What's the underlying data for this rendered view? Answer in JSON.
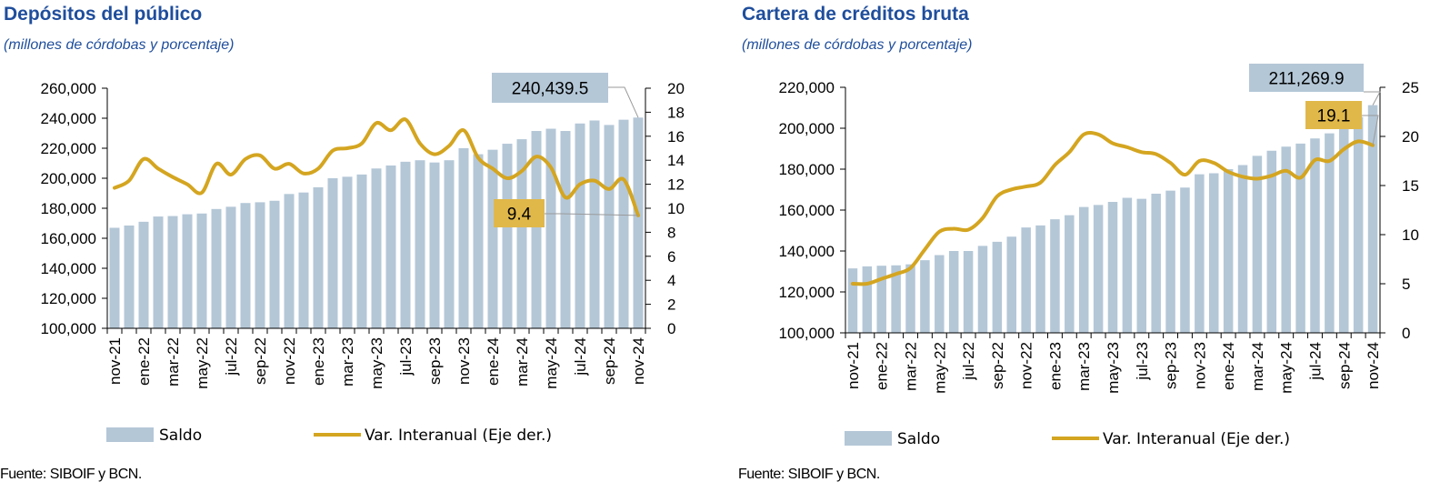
{
  "charts": [
    {
      "title": "Depósitos del público",
      "subtitle": "(millones de córdobas y porcentaje)",
      "source": "Fuente: SIBOIF y BCN.",
      "legend": {
        "bar": "Saldo",
        "line": "Var. Interanual (Eje der.)"
      },
      "colors": {
        "bar": "#b4c7d7",
        "line": "#d4a520",
        "callout_bar": "#b4c7d7",
        "callout_line": "#e0b84a",
        "title": "#1f4e9c"
      },
      "chart_data": {
        "type": "bar+line",
        "categories": [
          "nov-21",
          "dic-21",
          "ene-22",
          "feb-22",
          "mar-22",
          "abr-22",
          "may-22",
          "jun-22",
          "jul-22",
          "ago-22",
          "sep-22",
          "oct-22",
          "nov-22",
          "dic-22",
          "ene-23",
          "feb-23",
          "mar-23",
          "abr-23",
          "may-23",
          "jun-23",
          "jul-23",
          "ago-23",
          "sep-23",
          "oct-23",
          "nov-23",
          "dic-23",
          "ene-24",
          "feb-24",
          "mar-24",
          "abr-24",
          "may-24",
          "jun-24",
          "jul-24",
          "ago-24",
          "sep-24",
          "oct-24",
          "nov-24"
        ],
        "x_tick_labels": [
          "nov-21",
          "ene-22",
          "mar-22",
          "may-22",
          "jul-22",
          "sep-22",
          "nov-22",
          "ene-23",
          "mar-23",
          "may-23",
          "jul-23",
          "sep-23",
          "nov-23",
          "ene-24",
          "mar-24",
          "may-24",
          "jul-24",
          "sep-24",
          "nov-24"
        ],
        "series": [
          {
            "name": "Saldo",
            "type": "bar",
            "axis": "left",
            "values": [
              167000,
              168500,
              171000,
              174500,
              174800,
              176000,
              176500,
              179500,
              181000,
              183500,
              184000,
              185000,
              189500,
              190500,
              194000,
              200000,
              201000,
              202500,
              206500,
              208500,
              211000,
              212000,
              210500,
              212000,
              220000,
              216000,
              219000,
              223000,
              226000,
              231500,
              233000,
              231500,
              236500,
              238500,
              235500,
              239000,
              240439.5
            ]
          },
          {
            "name": "Var. Interanual (Eje der.)",
            "type": "line",
            "axis": "right",
            "values": [
              11.7,
              12.3,
              14.1,
              13.3,
              12.6,
              12.0,
              11.3,
              13.7,
              12.8,
              14.1,
              14.4,
              13.3,
              13.7,
              12.9,
              13.3,
              14.8,
              15.0,
              15.4,
              17.1,
              16.5,
              17.4,
              15.4,
              14.5,
              15.2,
              16.5,
              14.2,
              13.3,
              12.5,
              13.1,
              14.3,
              13.4,
              10.9,
              12.0,
              12.3,
              11.6,
              12.4,
              9.4
            ]
          }
        ],
        "y_left": {
          "min": 100000,
          "max": 260000,
          "step": 20000,
          "tick_labels": [
            "100,000",
            "120,000",
            "140,000",
            "160,000",
            "180,000",
            "200,000",
            "220,000",
            "240,000",
            "260,000"
          ]
        },
        "y_right": {
          "min": 0,
          "max": 20,
          "step": 2,
          "tick_labels": [
            "0",
            "2",
            "4",
            "6",
            "8",
            "10",
            "12",
            "14",
            "16",
            "18",
            "20"
          ]
        },
        "annotations": [
          {
            "text": "240,439.5",
            "target_series": "Saldo",
            "target_index": 36
          },
          {
            "text": "9.4",
            "target_series": "Var. Interanual (Eje der.)",
            "target_index": 36
          }
        ]
      }
    },
    {
      "title": "Cartera de créditos bruta",
      "subtitle": "(millones de córdobas y porcentaje)",
      "source": "Fuente: SIBOIF y BCN.",
      "legend": {
        "bar": "Saldo",
        "line": "Var. Interanual (Eje der.)"
      },
      "colors": {
        "bar": "#b4c7d7",
        "line": "#d4a520",
        "callout_bar": "#b4c7d7",
        "callout_line": "#e0b84a",
        "title": "#1f4e9c"
      },
      "chart_data": {
        "type": "bar+line",
        "categories": [
          "nov-21",
          "dic-21",
          "ene-22",
          "feb-22",
          "mar-22",
          "abr-22",
          "may-22",
          "jun-22",
          "jul-22",
          "ago-22",
          "sep-22",
          "oct-22",
          "nov-22",
          "dic-22",
          "ene-23",
          "feb-23",
          "mar-23",
          "abr-23",
          "may-23",
          "jun-23",
          "jul-23",
          "ago-23",
          "sep-23",
          "oct-23",
          "nov-23",
          "dic-23",
          "ene-24",
          "feb-24",
          "mar-24",
          "abr-24",
          "may-24",
          "jun-24",
          "jul-24",
          "ago-24",
          "sep-24",
          "oct-24",
          "nov-24"
        ],
        "x_tick_labels": [
          "nov-21",
          "ene-22",
          "mar-22",
          "may-22",
          "jul-22",
          "sep-22",
          "nov-22",
          "ene-23",
          "mar-23",
          "may-23",
          "jul-23",
          "sep-23",
          "nov-23",
          "ene-24",
          "mar-24",
          "may-24",
          "jul-24",
          "sep-24",
          "nov-24"
        ],
        "series": [
          {
            "name": "Saldo",
            "type": "bar",
            "axis": "left",
            "values": [
              131500,
              132500,
              132800,
              133000,
              133500,
              135500,
              138000,
              140000,
              140000,
              142500,
              144500,
              147000,
              151500,
              152500,
              155500,
              157500,
              161500,
              162500,
              164000,
              166000,
              165500,
              168000,
              169500,
              171000,
              177500,
              178000,
              180000,
              182000,
              186500,
              189000,
              191000,
              192500,
              195000,
              197500,
              200500,
              205500,
              211269.9
            ]
          },
          {
            "name": "Var. Interanual (Eje der.)",
            "type": "line",
            "axis": "right",
            "values": [
              5.0,
              5.0,
              5.5,
              6.0,
              6.6,
              8.5,
              10.3,
              10.6,
              10.5,
              11.7,
              13.9,
              14.6,
              14.9,
              15.3,
              17.1,
              18.4,
              20.2,
              20.2,
              19.3,
              18.9,
              18.4,
              18.2,
              17.3,
              16.1,
              17.5,
              17.3,
              16.4,
              15.9,
              15.7,
              16.0,
              16.5,
              15.8,
              17.6,
              17.5,
              18.7,
              19.5,
              19.1
            ]
          }
        ],
        "y_left": {
          "min": 100000,
          "max": 220000,
          "step": 20000,
          "tick_labels": [
            "100,000",
            "120,000",
            "140,000",
            "160,000",
            "180,000",
            "200,000",
            "220,000"
          ]
        },
        "y_right": {
          "min": 0,
          "max": 25,
          "step": 5,
          "tick_labels": [
            "0",
            "5",
            "10",
            "15",
            "20",
            "25"
          ]
        },
        "annotations": [
          {
            "text": "211,269.9",
            "target_series": "Saldo",
            "target_index": 36
          },
          {
            "text": "19.1",
            "target_series": "Var. Interanual (Eje der.)",
            "target_index": 36
          }
        ]
      }
    }
  ]
}
